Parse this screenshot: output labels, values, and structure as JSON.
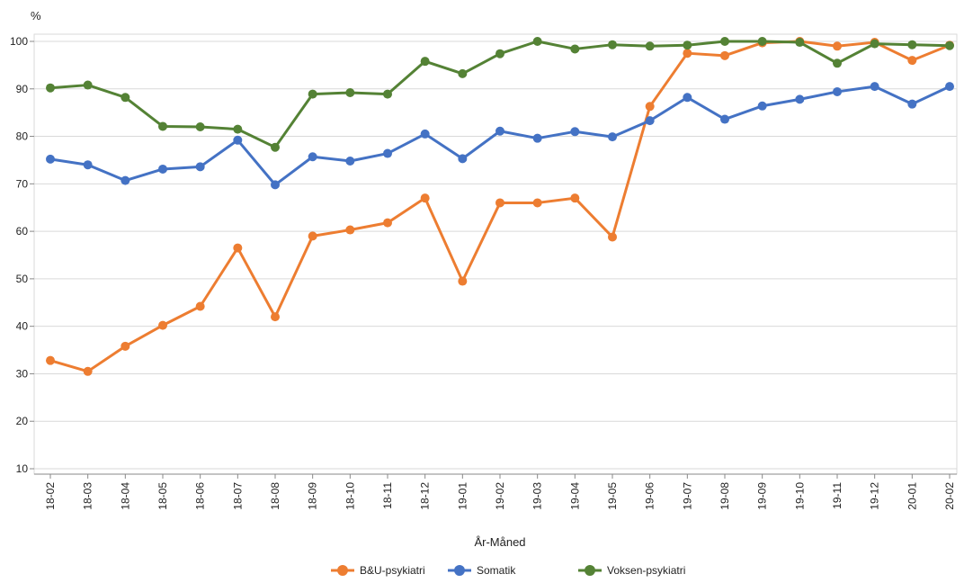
{
  "chart_data": {
    "type": "line",
    "ylabel": "%",
    "xlabel": "År-Måned",
    "ylim": [
      10,
      100
    ],
    "yticks": [
      10,
      20,
      30,
      40,
      50,
      60,
      70,
      80,
      90,
      100
    ],
    "grid": "horizontal",
    "legend_position": "bottom",
    "categories": [
      "18-02",
      "18-03",
      "18-04",
      "18-05",
      "18-06",
      "18-07",
      "18-08",
      "18-09",
      "18-10",
      "18-11",
      "18-12",
      "19-01",
      "19-02",
      "19-03",
      "19-04",
      "19-05",
      "19-06",
      "19-07",
      "19-08",
      "19-09",
      "19-10",
      "19-11",
      "19-12",
      "20-01",
      "20-02"
    ],
    "series": [
      {
        "name": "B&U-psykiatri",
        "color": "#ED7D31",
        "values": [
          32.8,
          30.5,
          35.8,
          40.2,
          44.2,
          56.5,
          42.0,
          59.0,
          60.3,
          61.8,
          67.0,
          49.5,
          66.0,
          66.0,
          67.0,
          58.8,
          86.3,
          97.5,
          97.0,
          99.7,
          100.0,
          99.0,
          99.8,
          96.0,
          99.2
        ]
      },
      {
        "name": "Somatik",
        "color": "#4472C4",
        "values": [
          75.2,
          74.0,
          70.7,
          73.1,
          73.6,
          79.2,
          69.8,
          75.7,
          74.8,
          76.4,
          80.5,
          75.3,
          81.1,
          79.6,
          81.0,
          79.9,
          83.3,
          88.2,
          83.6,
          86.4,
          87.8,
          89.4,
          90.5,
          86.8,
          90.5
        ]
      },
      {
        "name": "Voksen-psykiatri",
        "color": "#548235",
        "values": [
          90.2,
          90.8,
          88.2,
          82.1,
          82.0,
          81.5,
          77.7,
          88.9,
          89.2,
          88.9,
          95.8,
          93.2,
          97.4,
          100.0,
          98.4,
          99.3,
          99.0,
          99.2,
          100.0,
          100.0,
          99.8,
          95.4,
          99.5,
          99.3,
          99.1
        ]
      }
    ]
  }
}
